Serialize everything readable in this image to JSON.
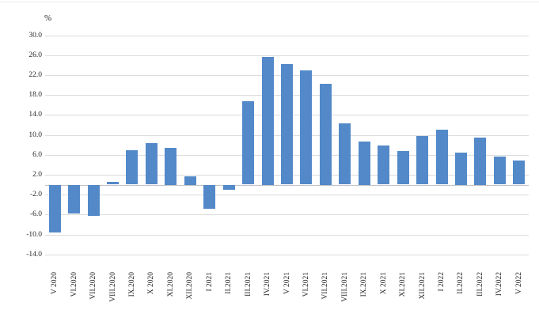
{
  "chart_data": {
    "type": "bar",
    "title": "",
    "unit_label": "%",
    "ylabel": "%",
    "xlabel": "",
    "legend_position": "none",
    "grid": true,
    "ylim": [
      -14.0,
      30.0
    ],
    "ytick_step": 4.0,
    "yticks": [
      "30.0",
      "26.0",
      "22.0",
      "18.0",
      "14.0",
      "10.0",
      "6.0",
      "2.0",
      "-2.0",
      "-6.0",
      "-10.0",
      "-14.0"
    ],
    "categories": [
      "V 2020",
      "VI.2020",
      "VII.2020",
      "VIII.2020",
      "IX.2020",
      "X 2020",
      "XI.2020",
      "XII.2020",
      "I 2021",
      "II.2021",
      "III.2021",
      "IV.2021",
      "V 2021",
      "VI.2021",
      "VII.2021",
      "VIII.2021",
      "IX.2021",
      "X 2021",
      "XI.2021",
      "XII.2021",
      "I 2022",
      "II.2022",
      "III.2022",
      "IV.2022",
      "V 2022"
    ],
    "values": [
      -9.5,
      -5.7,
      -6.2,
      0.5,
      6.9,
      8.3,
      7.4,
      1.7,
      -4.8,
      -1.0,
      16.7,
      25.7,
      24.2,
      22.9,
      20.3,
      12.3,
      8.7,
      7.8,
      6.7,
      9.7,
      11.0,
      6.5,
      9.5,
      5.6,
      4.8
    ],
    "colors": {
      "bar": "#5389c9",
      "gridline": "#dcdcdc",
      "zero_axis": "#c3c3c3",
      "text": "#262626",
      "background": "#ffffff"
    }
  }
}
